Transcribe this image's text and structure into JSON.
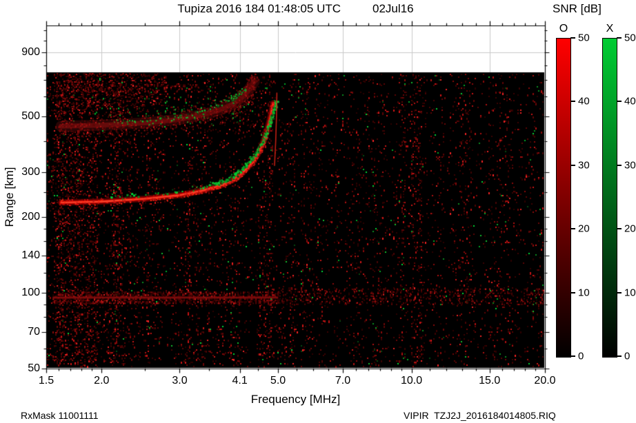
{
  "title": {
    "left": "Tupiza 2016 184 01:48:05 UTC",
    "right": "02Jul16"
  },
  "footer": {
    "left": "RxMask 11001111",
    "right": "VIPIR  TZJ2J_2016184014805.RIQ"
  },
  "colorbar": {
    "title": "SNR [dB]",
    "min": 0,
    "max": 50,
    "ticks": [
      0,
      10,
      20,
      30,
      40,
      50
    ],
    "bars": [
      {
        "label": "O",
        "color": "#ff0000",
        "bottom_color": "#000000"
      },
      {
        "label": "X",
        "color": "#00cc33",
        "bottom_color": "#000000"
      }
    ]
  },
  "chart_data": {
    "type": "heatmap",
    "subtype": "ionogram",
    "title": "Tupiza 2016 184 01:48:05 UTC 02Jul16",
    "xlabel": "Frequency [MHz]",
    "ylabel": "Range [km]",
    "x_scale": "log",
    "y_scale": "log",
    "xlim": [
      1.5,
      20
    ],
    "ylim": [
      50,
      1150
    ],
    "x_ticks": [
      1.5,
      2.0,
      3.0,
      4.1,
      5.0,
      7.0,
      10.0,
      15.0,
      20.0
    ],
    "x_tick_labels": [
      "1.5",
      "2.0",
      "3.0",
      "4.1",
      "5.0",
      "7.0",
      "10.0",
      "15.0",
      "20.0"
    ],
    "x_minor_ticks": [
      1.6,
      1.7,
      1.8,
      1.9,
      2.5,
      3.5,
      4.5,
      5.5,
      6.0,
      6.5,
      7.5,
      8.0,
      8.5,
      9.0,
      9.5,
      11,
      12,
      13,
      14,
      16,
      17,
      18,
      19
    ],
    "y_ticks": [
      50,
      70,
      100,
      140,
      200,
      300,
      500,
      900
    ],
    "y_minor_ticks": [
      60,
      80,
      90,
      120,
      160,
      180,
      250,
      400,
      600,
      700,
      800,
      1000,
      1100
    ],
    "grid": true,
    "background": "#000000",
    "data_region": {
      "f": [
        1.55,
        20
      ],
      "range": [
        50,
        750
      ]
    },
    "series": [
      {
        "name": "F2-layer O-mode trace",
        "mode": "O",
        "color": "#ff2012",
        "points": [
          [
            1.62,
            228
          ],
          [
            2.0,
            230
          ],
          [
            2.5,
            236
          ],
          [
            3.0,
            244
          ],
          [
            3.4,
            255
          ],
          [
            3.7,
            266
          ],
          [
            3.95,
            280
          ],
          [
            4.15,
            298
          ],
          [
            4.35,
            325
          ],
          [
            4.5,
            355
          ],
          [
            4.62,
            392
          ],
          [
            4.72,
            438
          ],
          [
            4.8,
            492
          ],
          [
            4.85,
            540
          ],
          [
            4.88,
            565
          ]
        ]
      },
      {
        "name": "F2-layer X-mode trace",
        "mode": "X",
        "color": "#00cc33",
        "points": [
          [
            2.05,
            240
          ],
          [
            2.5,
            246
          ],
          [
            3.0,
            254
          ],
          [
            3.4,
            265
          ],
          [
            3.7,
            277
          ],
          [
            3.95,
            292
          ],
          [
            4.15,
            312
          ],
          [
            4.35,
            340
          ],
          [
            4.5,
            372
          ],
          [
            4.65,
            415
          ],
          [
            4.78,
            470
          ],
          [
            4.88,
            530
          ],
          [
            4.94,
            580
          ]
        ]
      },
      {
        "name": "second-hop O-mode diffuse trace",
        "mode": "O",
        "color": "#aa1111",
        "points": [
          [
            1.62,
            458
          ],
          [
            2.0,
            462
          ],
          [
            2.5,
            472
          ],
          [
            3.0,
            488
          ],
          [
            3.4,
            510
          ],
          [
            3.7,
            532
          ],
          [
            3.95,
            560
          ],
          [
            4.15,
            596
          ],
          [
            4.3,
            640
          ],
          [
            4.42,
            690
          ]
        ]
      },
      {
        "name": "second-hop X-mode scatter",
        "mode": "X",
        "color": "#00aa2a",
        "points": [
          [
            2.2,
            478
          ],
          [
            2.6,
            488
          ],
          [
            3.0,
            505
          ],
          [
            3.3,
            522
          ],
          [
            3.6,
            548
          ],
          [
            3.85,
            578
          ],
          [
            4.05,
            612
          ],
          [
            4.2,
            650
          ]
        ]
      },
      {
        "name": "O-mode cusp asymptote",
        "mode": "O",
        "color": "#ff3020",
        "points": [
          [
            4.91,
            320
          ],
          [
            4.94,
            400
          ],
          [
            4.96,
            500
          ],
          [
            4.97,
            620
          ]
        ]
      }
    ],
    "noise": {
      "background": "#000000",
      "red_speckle": {
        "base_density": 0.075,
        "left_to_right_falloff": 0.45
      },
      "green_speckle": {
        "base_density": 0.003
      },
      "stripes": [
        {
          "f": [
            1.55,
            1.95
          ],
          "mult": 2.4
        },
        {
          "f": [
            2.05,
            2.32
          ],
          "mult": 2.1
        },
        {
          "f": [
            3.12,
            3.3
          ],
          "mult": 1.8
        },
        {
          "f": [
            4.5,
            4.85
          ],
          "mult": 1.9
        },
        {
          "f": [
            6.85,
            7.2
          ],
          "mult": 1.6
        },
        {
          "f": [
            9.2,
            10.5
          ],
          "mult": 1.9
        },
        {
          "f": [
            12.2,
            13.3
          ],
          "mult": 1.6
        },
        {
          "f": [
            15.7,
            16.7
          ],
          "mult": 1.5
        }
      ],
      "bands": [
        {
          "f": [
            1.55,
            1.95
          ],
          "r": [
            52,
            745
          ],
          "density": 0.1,
          "type": "red"
        },
        {
          "f": [
            1.58,
            2.8
          ],
          "r": [
            545,
            745
          ],
          "density": 0.22,
          "type": "red"
        },
        {
          "f": [
            1.6,
            4.5
          ],
          "r": [
            430,
            555
          ],
          "density": 0.07,
          "type": "red"
        },
        {
          "f": [
            1.6,
            3.6
          ],
          "r": [
            630,
            672
          ],
          "density": 0.22,
          "type": "red"
        },
        {
          "f": [
            1.9,
            4.4
          ],
          "r": [
            470,
            600
          ],
          "density": 0.03,
          "type": "green"
        },
        {
          "f": [
            1.55,
            5.0
          ],
          "r": [
            91,
            101
          ],
          "density": 0.55,
          "type": "red"
        },
        {
          "f": [
            5.0,
            19.8
          ],
          "r": [
            90,
            104
          ],
          "density": 0.22,
          "type": "red"
        }
      ]
    }
  }
}
